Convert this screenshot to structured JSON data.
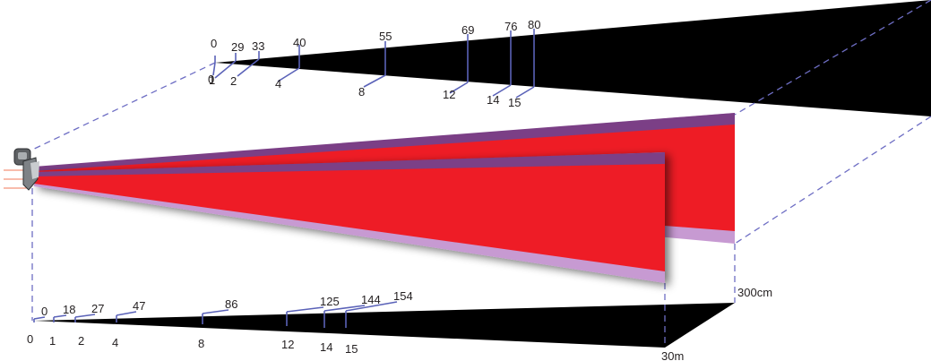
{
  "colors": {
    "beam_red": "#ee1c25",
    "beam_purple_dark": "#7b3f86",
    "beam_purple_light": "#c79ad2",
    "dashed_line": "#6e6ec4",
    "tick_line": "#5a62b8",
    "spot_cone": "#000000"
  },
  "top_scale": {
    "ticks": [
      {
        "distance": "0",
        "size": "0"
      },
      {
        "distance": "1",
        "size": "29"
      },
      {
        "distance": "2",
        "size": "33"
      },
      {
        "distance": "4",
        "size": "40"
      },
      {
        "distance": "8",
        "size": "55"
      },
      {
        "distance": "12",
        "size": "69"
      },
      {
        "distance": "14",
        "size": "76"
      },
      {
        "distance": "15",
        "size": "80"
      }
    ]
  },
  "bottom_scale": {
    "ticks": [
      {
        "distance": "0",
        "size": "0"
      },
      {
        "distance": "1",
        "size": "18"
      },
      {
        "distance": "2",
        "size": "27"
      },
      {
        "distance": "4",
        "size": "47"
      },
      {
        "distance": "8",
        "size": "86"
      },
      {
        "distance": "12",
        "size": "125"
      },
      {
        "distance": "14",
        "size": "144"
      },
      {
        "distance": "15",
        "size": "154"
      }
    ]
  },
  "labels": {
    "height_label": "300cm",
    "distance_label": "30m"
  },
  "icons": {
    "device": "infrared-thermometer-icon"
  }
}
